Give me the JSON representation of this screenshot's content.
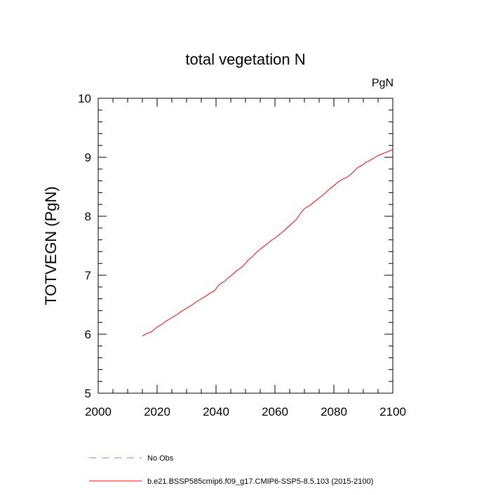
{
  "chart_data": {
    "type": "line",
    "title": "total vegetation N",
    "units_label": "PgN",
    "ylabel": "TOTVEGN  (PgN)",
    "xlabel": "",
    "xlim": [
      2000,
      2100
    ],
    "ylim": [
      5,
      10
    ],
    "x_ticks": [
      "2000",
      "2020",
      "2040",
      "2060",
      "2080",
      "2100"
    ],
    "y_ticks": [
      "5",
      "6",
      "7",
      "8",
      "9",
      "10"
    ],
    "grid": false,
    "series": [
      {
        "name": "b.e21.BSSP585cmip6.f09_g17.CMIP6-SSP5-8.5.103 (2015-2100)",
        "color": "#ff0000",
        "dash": "solid",
        "x": [
          2015,
          2016,
          2017,
          2018,
          2019,
          2020,
          2021,
          2022,
          2023,
          2024,
          2025,
          2026,
          2027,
          2028,
          2029,
          2030,
          2031,
          2032,
          2033,
          2034,
          2035,
          2036,
          2037,
          2038,
          2039,
          2040,
          2041,
          2042,
          2043,
          2044,
          2045,
          2046,
          2047,
          2048,
          2049,
          2050,
          2051,
          2052,
          2053,
          2054,
          2055,
          2056,
          2057,
          2058,
          2059,
          2060,
          2061,
          2062,
          2063,
          2064,
          2065,
          2066,
          2067,
          2068,
          2069,
          2070,
          2071,
          2072,
          2073,
          2074,
          2075,
          2076,
          2077,
          2078,
          2079,
          2080,
          2081,
          2082,
          2083,
          2084,
          2085,
          2086,
          2087,
          2088,
          2089,
          2090,
          2091,
          2092,
          2093,
          2094,
          2095,
          2096,
          2097,
          2098,
          2099,
          2100
        ],
        "values": [
          5.97,
          6.0,
          6.02,
          6.04,
          6.08,
          6.12,
          6.15,
          6.18,
          6.22,
          6.25,
          6.28,
          6.31,
          6.34,
          6.38,
          6.41,
          6.44,
          6.47,
          6.5,
          6.54,
          6.57,
          6.6,
          6.63,
          6.66,
          6.7,
          6.72,
          6.77,
          6.84,
          6.87,
          6.9,
          6.95,
          6.99,
          7.03,
          7.08,
          7.11,
          7.15,
          7.2,
          7.26,
          7.3,
          7.35,
          7.4,
          7.44,
          7.48,
          7.52,
          7.56,
          7.6,
          7.63,
          7.67,
          7.71,
          7.75,
          7.8,
          7.84,
          7.89,
          7.93,
          8.0,
          8.07,
          8.13,
          8.16,
          8.19,
          8.23,
          8.27,
          8.31,
          8.35,
          8.39,
          8.44,
          8.48,
          8.52,
          8.56,
          8.6,
          8.63,
          8.65,
          8.68,
          8.72,
          8.77,
          8.82,
          8.85,
          8.88,
          8.92,
          8.94,
          8.97,
          9.0,
          9.03,
          9.05,
          9.07,
          9.09,
          9.11,
          9.13
        ]
      }
    ],
    "legend": [
      {
        "label": "No Obs",
        "color": "#8080ff",
        "dash": "dashed"
      },
      {
        "label": "b.e21.BSSP585cmip6.f09_g17.CMIP6-SSP5-8.5.103 (2015-2100)",
        "color": "#ff0000",
        "dash": "solid"
      }
    ],
    "legend_position": "bottom-left"
  }
}
